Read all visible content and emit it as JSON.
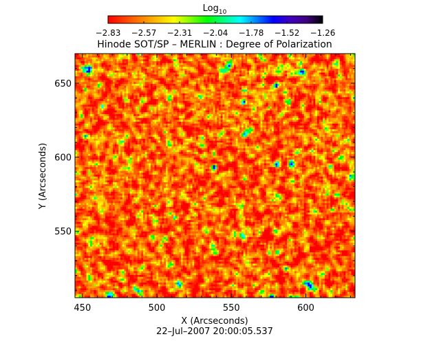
{
  "chart_data": {
    "type": "heatmap",
    "title": "Hinode SOT/SP – MERLIN : Degree of Polarization",
    "xlabel": "X (Arcseconds)",
    "ylabel": "Y (Arcseconds)",
    "timestamp": "22–Jul–2007 20:00:05.537",
    "xlim": [
      445,
      633
    ],
    "ylim": [
      505,
      670
    ],
    "xticks": [
      450,
      500,
      550,
      600
    ],
    "yticks": [
      550,
      600,
      650
    ],
    "colorbar": {
      "label_base": "Log",
      "label_sub": "10",
      "range": [
        -2.83,
        -1.26
      ],
      "ticks": [
        "−2.83",
        "−2.57",
        "−2.31",
        "−2.04",
        "−1.78",
        "−1.52",
        "−1.26"
      ],
      "colormap": [
        "#ff0000",
        "#ff4000",
        "#ff8000",
        "#ffc000",
        "#ffff00",
        "#80ff00",
        "#00ff00",
        "#00ff80",
        "#00ffff",
        "#0080ff",
        "#0000ff",
        "#4000c0",
        "#400080",
        "#000000"
      ]
    }
  }
}
